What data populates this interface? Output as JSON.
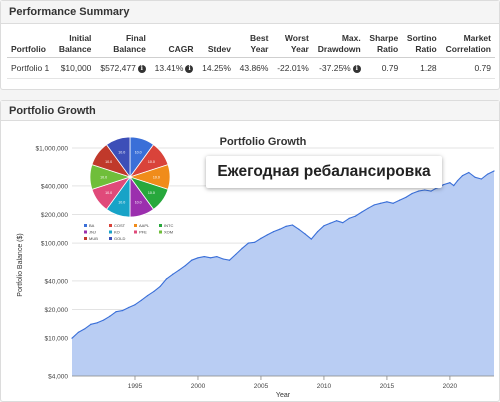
{
  "summary": {
    "title": "Performance Summary",
    "headers": [
      [
        "",
        "Portfolio"
      ],
      [
        "Initial",
        "Balance"
      ],
      [
        "Final",
        "Balance"
      ],
      [
        "",
        "CAGR"
      ],
      [
        "",
        "Stdev"
      ],
      [
        "Best",
        "Year"
      ],
      [
        "Worst",
        "Year"
      ],
      [
        "Max.",
        "Drawdown"
      ],
      [
        "Sharpe",
        "Ratio"
      ],
      [
        "Sortino",
        "Ratio"
      ],
      [
        "Market",
        "Correlation"
      ]
    ],
    "row": {
      "portfolio": "Portfolio 1",
      "initial_balance": "$10,000",
      "final_balance": "$572,477",
      "cagr": "13.41%",
      "stdev": "14.25%",
      "best_year": "43.86%",
      "worst_year": "-22.01%",
      "max_drawdown": "-37.25%",
      "sharpe": "0.79",
      "sortino": "1.28",
      "market_correlation": "0.79"
    },
    "info_glyph": "i"
  },
  "growth": {
    "title": "Portfolio Growth",
    "overlay_text": "Ежегодная ребалансировка",
    "chart_data": {
      "type": "area",
      "title": "Portfolio Growth",
      "xlabel": "Year",
      "ylabel": "Portfolio Balance ($)",
      "yscale": "log",
      "ylim": [
        4000,
        1000000
      ],
      "xlim": [
        1990,
        2023.5
      ],
      "y_ticks": [
        4000,
        10000,
        20000,
        40000,
        100000,
        200000,
        400000,
        1000000
      ],
      "y_tick_labels": [
        "$4,000",
        "$10,000",
        "$20,000",
        "$40,000",
        "$100,000",
        "$200,000",
        "$400,000",
        "$1,000,000"
      ],
      "x_ticks": [
        1995,
        2000,
        2005,
        2010,
        2015,
        2020
      ],
      "x_tick_labels": [
        "1995",
        "2000",
        "2005",
        "2010",
        "2015",
        "2020"
      ],
      "grid": true,
      "line_color": "#3a6fd8",
      "fill_color": "#b9cdf3",
      "series": [
        {
          "x": [
            1990.0,
            1990.5,
            1991.0,
            1991.5,
            1992.0,
            1992.5,
            1993.0,
            1993.5,
            1994.0,
            1994.5,
            1995.0,
            1995.5,
            1996.0,
            1996.5,
            1997.0,
            1997.5,
            1998.0,
            1998.5,
            1999.0,
            1999.5,
            2000.0,
            2000.5,
            2001.0,
            2001.5,
            2002.0,
            2002.5,
            2003.0,
            2003.5,
            2004.0,
            2004.5,
            2005.0,
            2005.5,
            2006.0,
            2006.5,
            2007.0,
            2007.5,
            2008.0,
            2008.5,
            2009.0,
            2009.5,
            2010.0,
            2010.5,
            2011.0,
            2011.5,
            2012.0,
            2012.5,
            2013.0,
            2013.5,
            2014.0,
            2014.5,
            2015.0,
            2015.5,
            2016.0,
            2016.5,
            2017.0,
            2017.5,
            2018.0,
            2018.5,
            2019.0,
            2019.5,
            2020.0,
            2020.3,
            2020.6,
            2021.0,
            2021.5,
            2022.0,
            2022.5,
            2023.0,
            2023.5
          ],
          "values": [
            10000,
            11500,
            12500,
            14000,
            14500,
            15500,
            17000,
            19000,
            19500,
            21000,
            22500,
            25000,
            28000,
            31000,
            35000,
            42000,
            47000,
            52000,
            58000,
            66000,
            70000,
            72000,
            70000,
            72000,
            68000,
            66000,
            76000,
            88000,
            100000,
            102000,
            112000,
            122000,
            132000,
            140000,
            150000,
            155000,
            140000,
            125000,
            110000,
            132000,
            152000,
            162000,
            172000,
            164000,
            182000,
            192000,
            212000,
            232000,
            252000,
            262000,
            272000,
            262000,
            282000,
            302000,
            332000,
            352000,
            362000,
            352000,
            382000,
            412000,
            432000,
            402000,
            452000,
            512000,
            552000,
            492000,
            472000,
            532000,
            572477
          ]
        }
      ]
    },
    "pie_data": {
      "type": "pie",
      "slice_colors": [
        "#3a6fd8",
        "#d9433a",
        "#f08c1a",
        "#27a83c",
        "#9b2fae",
        "#18a3c7",
        "#e04a7a",
        "#6fbe3a",
        "#c0392b",
        "#3d4fb8"
      ],
      "slice_labels": [
        "10.0",
        "10.0",
        "10.0",
        "10.0",
        "10.0",
        "10.0",
        "10.0",
        "10.0",
        "10.0",
        "10.0"
      ],
      "values": [
        10,
        10,
        10,
        10,
        10,
        10,
        10,
        10,
        10,
        10
      ],
      "legend": [
        {
          "label": "BA",
          "color": "#3a6fd8"
        },
        {
          "label": "COST",
          "color": "#d9433a"
        },
        {
          "label": "AAPL",
          "color": "#f08c1a"
        },
        {
          "label": "INTC",
          "color": "#27a83c"
        },
        {
          "label": "JNJ",
          "color": "#9b2fae"
        },
        {
          "label": "KO",
          "color": "#18a3c7"
        },
        {
          "label": "PFE",
          "color": "#e04a7a"
        },
        {
          "label": "XOM",
          "color": "#6fbe3a"
        },
        {
          "label": "MUB",
          "color": "#c0392b"
        },
        {
          "label": "GOLD",
          "color": "#3d4fb8"
        }
      ]
    }
  }
}
